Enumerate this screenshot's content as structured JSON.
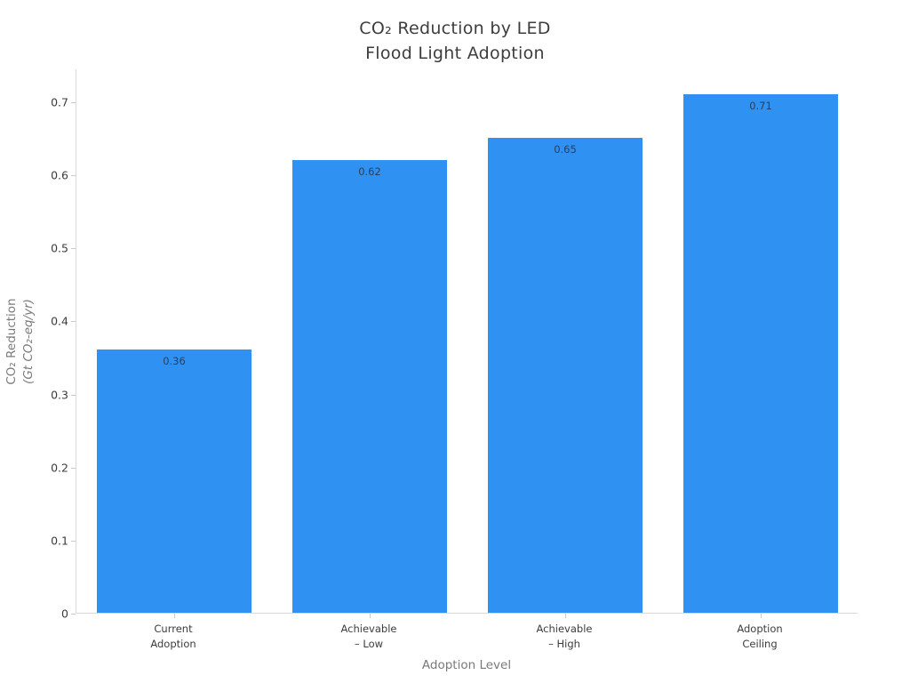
{
  "title": {
    "line1": "CO₂ Reduction by LED",
    "line2": "Flood Light Adoption"
  },
  "axes": {
    "x_title": "Adoption Level",
    "y_title_line1": "CO₂ Reduction",
    "y_title_line2": "(Gt CO₂-eq/yr)"
  },
  "chart_data": {
    "type": "bar",
    "title": "CO₂ Reduction by LED Flood Light Adoption",
    "xlabel": "Adoption Level",
    "ylabel": "CO₂ Reduction (Gt CO₂-eq/yr)",
    "categories": [
      {
        "line1": "Current",
        "line2": "Adoption"
      },
      {
        "line1": "Achievable",
        "line2": "– Low"
      },
      {
        "line1": "Achievable",
        "line2": "– High"
      },
      {
        "line1": "Adoption",
        "line2": "Ceiling"
      }
    ],
    "values": [
      0.36,
      0.62,
      0.65,
      0.71
    ],
    "value_labels": [
      "0.36",
      "0.62",
      "0.65",
      "0.71"
    ],
    "yticks": [
      0,
      0.1,
      0.2,
      0.3,
      0.4,
      0.5,
      0.6,
      0.7
    ],
    "ytick_labels": [
      "0",
      "0.1",
      "0.2",
      "0.3",
      "0.4",
      "0.5",
      "0.6",
      "0.7"
    ],
    "ylim": [
      0,
      0.745
    ],
    "grid": false,
    "legend": "none",
    "bar_color": "#2f92f3"
  },
  "colors": {
    "bar": "#2f92f3",
    "axis_line": "#d9d9d9",
    "tick_mark": "#c9c9c9",
    "tick_label": "#3c3c3c",
    "axis_title": "#7a7a7a",
    "title": "#3d3d3d",
    "value_label": "#2a3f5f",
    "background": "#ffffff"
  }
}
